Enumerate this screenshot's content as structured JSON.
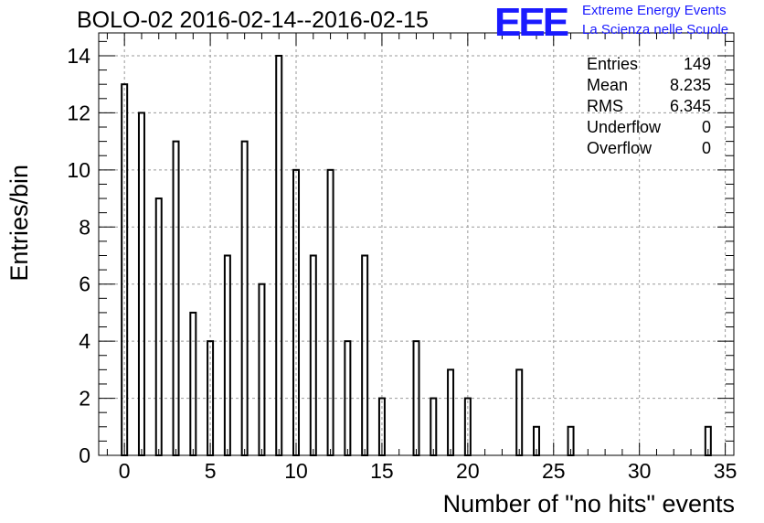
{
  "title": "BOLO-02 2016-02-14--2016-02-15",
  "logo": {
    "mark": "EEE",
    "line1": "Extreme Energy Events",
    "line2": "La Scienza nelle Scuole",
    "color": "#1a1aff"
  },
  "stats": [
    {
      "label": "Entries",
      "value": "149"
    },
    {
      "label": "Mean",
      "value": "8.235"
    },
    {
      "label": "RMS",
      "value": "6.345"
    },
    {
      "label": "Underflow",
      "value": "0"
    },
    {
      "label": "Overflow",
      "value": "0"
    }
  ],
  "chart_data": {
    "type": "bar",
    "xlabel": "Number of \"no hits\" events",
    "ylabel": "Entries/bin",
    "xlim": [
      -1.5,
      35.5
    ],
    "ylim": [
      0,
      14.8
    ],
    "xticks": [
      0,
      5,
      10,
      15,
      20,
      25,
      30,
      35
    ],
    "yticks": [
      0,
      2,
      4,
      6,
      8,
      10,
      12,
      14
    ],
    "grid": true,
    "bins": [
      {
        "x": 0,
        "value": 13
      },
      {
        "x": 1,
        "value": 12
      },
      {
        "x": 2,
        "value": 9
      },
      {
        "x": 3,
        "value": 11
      },
      {
        "x": 4,
        "value": 5
      },
      {
        "x": 5,
        "value": 4
      },
      {
        "x": 6,
        "value": 7
      },
      {
        "x": 7,
        "value": 11
      },
      {
        "x": 8,
        "value": 6
      },
      {
        "x": 9,
        "value": 14
      },
      {
        "x": 10,
        "value": 10
      },
      {
        "x": 11,
        "value": 7
      },
      {
        "x": 12,
        "value": 10
      },
      {
        "x": 13,
        "value": 4
      },
      {
        "x": 14,
        "value": 7
      },
      {
        "x": 15,
        "value": 2
      },
      {
        "x": 17,
        "value": 4
      },
      {
        "x": 18,
        "value": 2
      },
      {
        "x": 19,
        "value": 3
      },
      {
        "x": 20,
        "value": 2
      },
      {
        "x": 23,
        "value": 3
      },
      {
        "x": 24,
        "value": 1
      },
      {
        "x": 26,
        "value": 1
      },
      {
        "x": 34,
        "value": 1
      }
    ]
  }
}
